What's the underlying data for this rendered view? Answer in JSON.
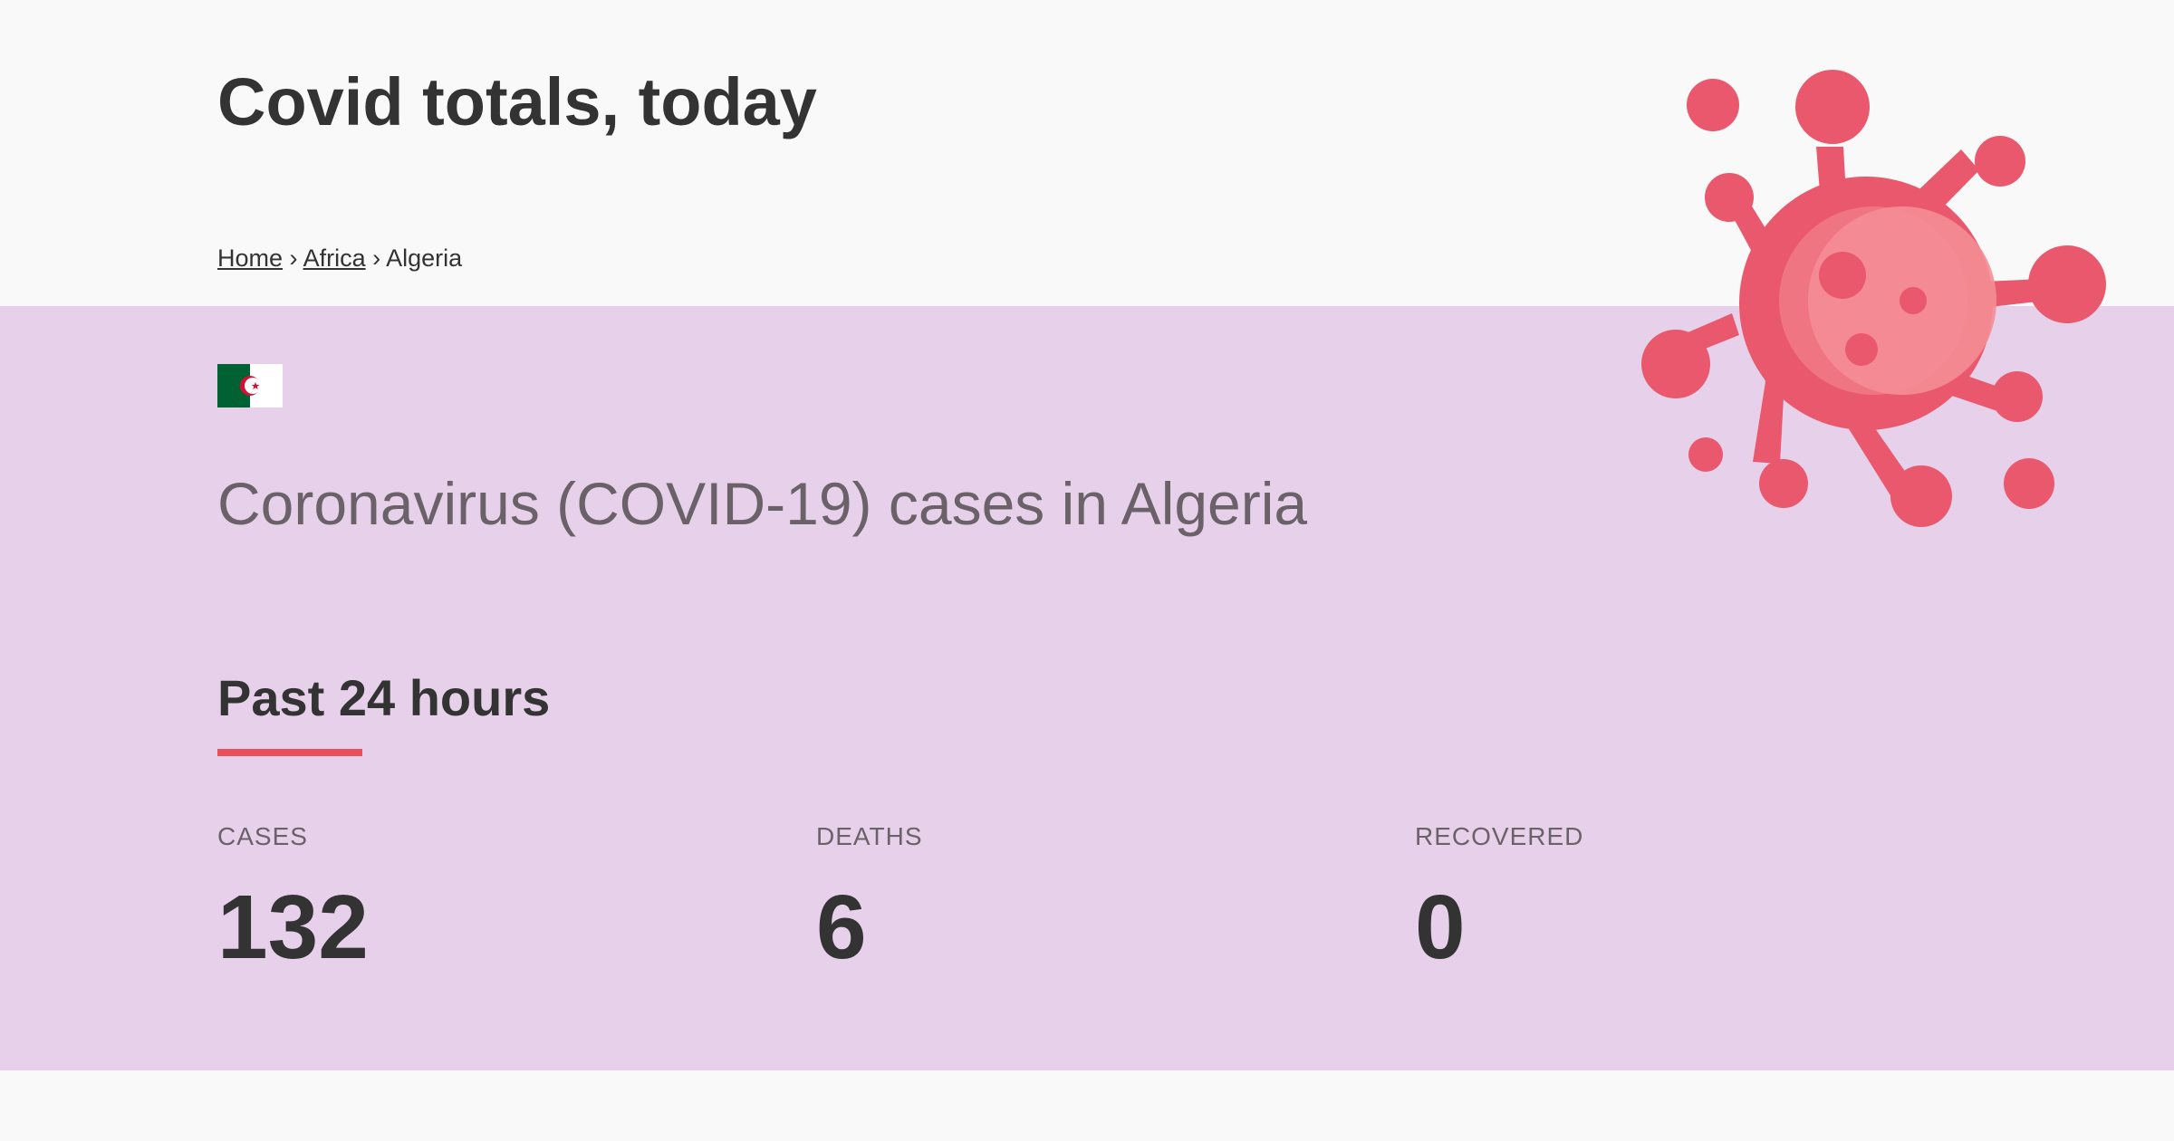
{
  "header": {
    "title": "Covid totals, today"
  },
  "breadcrumb": {
    "items": [
      {
        "label": "Home",
        "link": true
      },
      {
        "label": "Africa",
        "link": true
      },
      {
        "label": "Algeria",
        "link": false
      }
    ],
    "separator": "›"
  },
  "country": {
    "heading": "Coronavirus (COVID-19) cases in Algeria",
    "flag_icon": "algeria-flag-icon"
  },
  "section": {
    "heading": "Past 24 hours"
  },
  "stats": [
    {
      "label": "CASES",
      "value": "132"
    },
    {
      "label": "DEATHS",
      "value": "6"
    },
    {
      "label": "RECOVERED",
      "value": "0"
    }
  ],
  "colors": {
    "band": "#e7d1ea",
    "accent": "#e8505b",
    "virus": "#e9586c",
    "text": "#333333",
    "muted": "#6b6168"
  },
  "icons": {
    "virus": "virus-icon"
  }
}
